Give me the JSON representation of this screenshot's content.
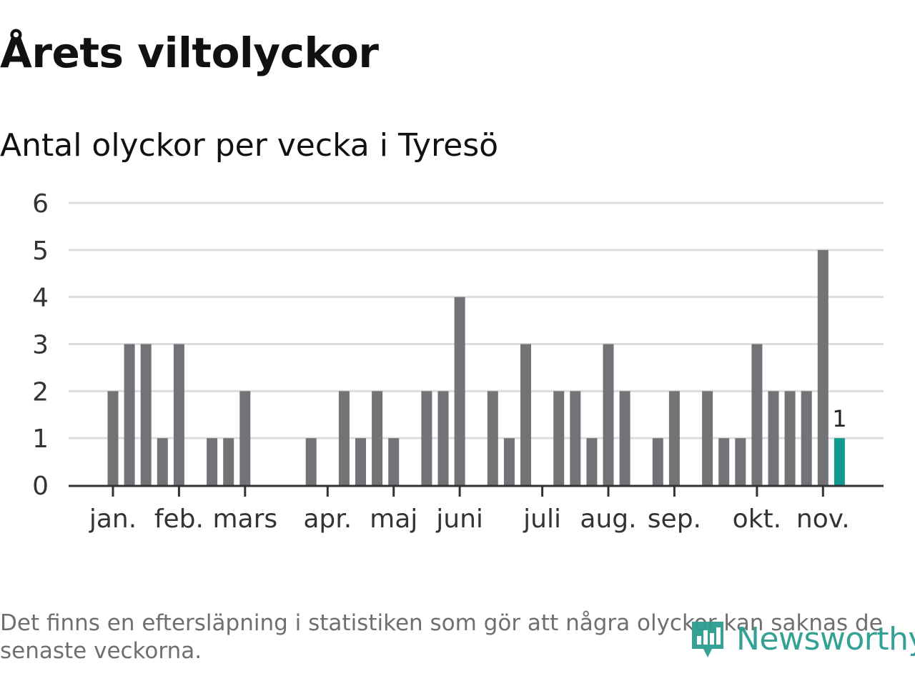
{
  "title": "Årets viltolyckor",
  "subtitle": "Antal olyckor per vecka i Tyresö",
  "footnote": "Det finns en eftersläpning i statistiken som gör att några olyckor kan saknas de senaste veckorna.",
  "logo": {
    "text": "Newsworthy",
    "icon": "newsworthy-chart-icon"
  },
  "colors": {
    "bar": "#737277",
    "highlight": "#139a8f",
    "grid": "#dddddd",
    "axis": "#333333",
    "brand": "#2a9d8f"
  },
  "chart_data": {
    "type": "bar",
    "title": "Årets viltolyckor",
    "subtitle": "Antal olyckor per vecka i Tyresö",
    "xlabel": "",
    "ylabel": "",
    "ylim": [
      0,
      6
    ],
    "yticks": [
      0,
      1,
      2,
      3,
      4,
      5,
      6
    ],
    "grid": true,
    "x_labels": [
      "jan.",
      "feb.",
      "mars",
      "apr.",
      "maj",
      "juni",
      "juli",
      "aug.",
      "sep.",
      "okt.",
      "nov."
    ],
    "x_label_weeks": [
      1,
      5,
      9,
      14,
      18,
      22,
      27,
      31,
      35,
      40,
      44
    ],
    "weeks": [
      1,
      2,
      3,
      4,
      5,
      6,
      7,
      8,
      9,
      10,
      11,
      12,
      13,
      14,
      15,
      16,
      17,
      18,
      19,
      20,
      21,
      22,
      23,
      24,
      25,
      26,
      27,
      28,
      29,
      30,
      31,
      32,
      33,
      34,
      35,
      36,
      37,
      38,
      39,
      40,
      41,
      42,
      43,
      44,
      45
    ],
    "values": [
      2,
      3,
      3,
      1,
      3,
      0,
      1,
      1,
      2,
      0,
      0,
      0,
      1,
      0,
      2,
      1,
      2,
      1,
      0,
      2,
      2,
      4,
      0,
      2,
      1,
      3,
      0,
      2,
      2,
      1,
      3,
      2,
      0,
      1,
      2,
      0,
      2,
      1,
      1,
      3,
      2,
      2,
      2,
      5,
      1
    ],
    "highlight_index": 44,
    "highlight_label": "1"
  }
}
